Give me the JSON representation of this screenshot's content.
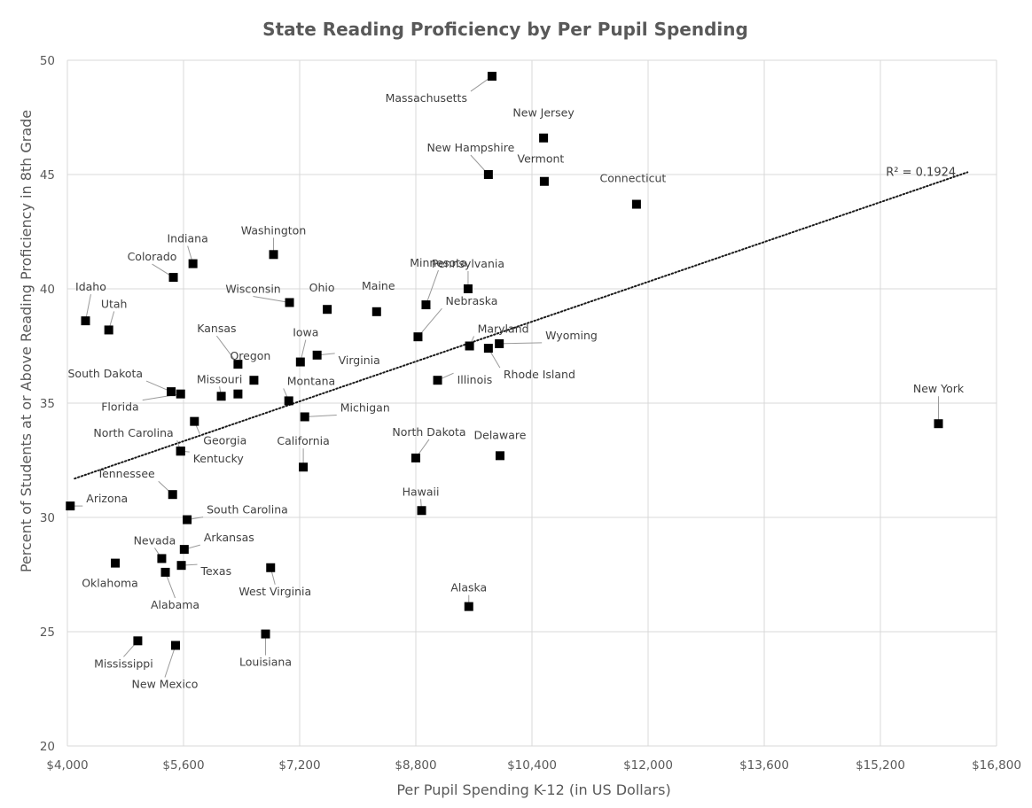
{
  "chart_data": {
    "type": "scatter",
    "title": "State Reading Proficiency  by Per Pupil Spending",
    "xlabel": "Per Pupil Spending K-12 (in US Dollars)",
    "ylabel": "Percent of Students at or Above Reading Proficiency in 8th Grade",
    "xlim": [
      4000,
      16800
    ],
    "ylim": [
      20,
      50
    ],
    "x_ticks": [
      4000,
      5600,
      7200,
      8800,
      10400,
      12000,
      13600,
      15200,
      16800
    ],
    "x_tick_labels": [
      "$4,000",
      "$5,600",
      "$7,200",
      "$8,800",
      "$10,400",
      "$12,000",
      "$13,600",
      "$15,200",
      "$16,800"
    ],
    "y_ticks": [
      20,
      25,
      30,
      35,
      40,
      45,
      50
    ],
    "y_tick_labels": [
      "20",
      "25",
      "30",
      "35",
      "40",
      "45",
      "50"
    ],
    "grid": true,
    "trendline": {
      "type": "linear",
      "style": "dotted",
      "x_start": 4100,
      "y_start": 31.7,
      "x_end": 16400,
      "y_end": 45.1,
      "label": "R² = 0.1924"
    },
    "points": [
      {
        "label": "Massachusetts",
        "x": 9850,
        "y": 49.3
      },
      {
        "label": "New Jersey",
        "x": 10560,
        "y": 46.6
      },
      {
        "label": "New Hampshire",
        "x": 9800,
        "y": 45.0
      },
      {
        "label": "Vermont",
        "x": 10570,
        "y": 44.7
      },
      {
        "label": "Connecticut",
        "x": 11840,
        "y": 43.7
      },
      {
        "label": "Washington",
        "x": 6840,
        "y": 41.5
      },
      {
        "label": "Indiana",
        "x": 5730,
        "y": 41.1
      },
      {
        "label": "Colorado",
        "x": 5460,
        "y": 40.5
      },
      {
        "label": "Pennsylvania",
        "x": 9520,
        "y": 40.0
      },
      {
        "label": "Wisconsin",
        "x": 7060,
        "y": 39.4
      },
      {
        "label": "Ohio",
        "x": 7580,
        "y": 39.1
      },
      {
        "label": "Maine",
        "x": 8260,
        "y": 39.0
      },
      {
        "label": "Minnesota",
        "x": 8940,
        "y": 39.3
      },
      {
        "label": "Nebraska",
        "x": 8830,
        "y": 37.9
      },
      {
        "label": "Idaho",
        "x": 4250,
        "y": 38.6
      },
      {
        "label": "Utah",
        "x": 4570,
        "y": 38.2
      },
      {
        "label": "Maryland",
        "x": 9540,
        "y": 37.5
      },
      {
        "label": "Rhode Island",
        "x": 9800,
        "y": 37.4
      },
      {
        "label": "Wyoming",
        "x": 9950,
        "y": 37.6
      },
      {
        "label": "Iowa",
        "x": 7210,
        "y": 36.8
      },
      {
        "label": "Virginia",
        "x": 7440,
        "y": 37.1
      },
      {
        "label": "Kansas",
        "x": 6350,
        "y": 36.7
      },
      {
        "label": "Oregon",
        "x": 6570,
        "y": 36.0
      },
      {
        "label": "Illinois",
        "x": 9100,
        "y": 36.0
      },
      {
        "label": "South Dakota",
        "x": 5430,
        "y": 35.5
      },
      {
        "label": "Florida",
        "x": 5560,
        "y": 35.4
      },
      {
        "label": "Missouri",
        "x": 6120,
        "y": 35.3
      },
      {
        "label": "Missouri",
        "x": 6350,
        "y": 35.4
      },
      {
        "label": "Montana",
        "x": 7050,
        "y": 35.1
      },
      {
        "label": "Georgia",
        "x": 5750,
        "y": 34.2
      },
      {
        "label": "Michigan",
        "x": 7270,
        "y": 34.4
      },
      {
        "label": "New York",
        "x": 16000,
        "y": 34.1
      },
      {
        "label": "North Carolina",
        "x": 5560,
        "y": 32.9
      },
      {
        "label": "Kentucky",
        "x": 5560,
        "y": 32.9
      },
      {
        "label": "North Dakota",
        "x": 8800,
        "y": 32.6
      },
      {
        "label": "Delaware",
        "x": 9960,
        "y": 32.7
      },
      {
        "label": "California",
        "x": 7250,
        "y": 32.2
      },
      {
        "label": "Tennessee",
        "x": 5450,
        "y": 31.0
      },
      {
        "label": "Arizona",
        "x": 4040,
        "y": 30.5
      },
      {
        "label": "Hawaii",
        "x": 8880,
        "y": 30.3
      },
      {
        "label": "South Carolina",
        "x": 5650,
        "y": 29.9
      },
      {
        "label": "Arkansas",
        "x": 5610,
        "y": 28.6
      },
      {
        "label": "Nevada",
        "x": 5300,
        "y": 28.2
      },
      {
        "label": "Oklahoma",
        "x": 4660,
        "y": 28.0
      },
      {
        "label": "Texas",
        "x": 5570,
        "y": 27.9
      },
      {
        "label": "West Virginia",
        "x": 6800,
        "y": 27.8
      },
      {
        "label": "Alabama",
        "x": 5350,
        "y": 27.6
      },
      {
        "label": "Alaska",
        "x": 9530,
        "y": 26.1
      },
      {
        "label": "Louisiana",
        "x": 6730,
        "y": 24.9
      },
      {
        "label": "Mississippi",
        "x": 4970,
        "y": 24.6
      },
      {
        "label": "New Mexico",
        "x": 5490,
        "y": 24.4
      }
    ]
  }
}
